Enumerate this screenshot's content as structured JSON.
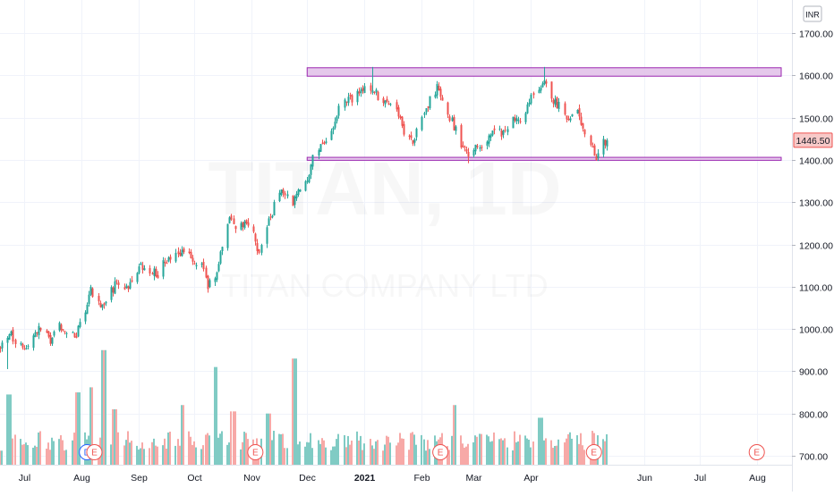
{
  "currency_label": "INR",
  "watermark": {
    "symbol": "TITAN, 1D",
    "subtitle": "TITAN COMPANY LTD"
  },
  "colors": {
    "up": "#26a69a",
    "down": "#ef5350",
    "up_volume": "#80cbc4",
    "down_volume": "#f7a9a7",
    "grid": "#f0f3fa",
    "axis_text": "#131722",
    "zone_stroke": "#9c27b0",
    "zone_fill": "#e1bee7",
    "last_price_bg": "#f7c9c8",
    "last_price_border": "#ef5350"
  },
  "chart_data": {
    "type": "candlestick",
    "ylim": [
      680,
      1740
    ],
    "yticks": [
      "1700.00",
      "1600.00",
      "1500.00",
      "1400.00",
      "1300.00",
      "1200.00",
      "1100.00",
      "1000.00",
      "900.00",
      "800.00",
      "700.00"
    ],
    "ytick_values": [
      1700,
      1600,
      1500,
      1400,
      1300,
      1200,
      1100,
      1000,
      900,
      800,
      700
    ],
    "xlim": [
      "2020-06-18",
      "2021-08-20"
    ],
    "xticks": [
      "Jul",
      "Aug",
      "Sep",
      "Oct",
      "Nov",
      "Dec",
      "2021",
      "Feb",
      "Mar",
      "Apr",
      "Jun",
      "Jul",
      "Aug"
    ],
    "xtick_dates": [
      "2020-07-01",
      "2020-08-01",
      "2020-09-01",
      "2020-10-01",
      "2020-11-01",
      "2020-12-01",
      "2021-01-01",
      "2021-02-01",
      "2021-03-01",
      "2021-04-01",
      "2021-06-01",
      "2021-07-01",
      "2021-08-01"
    ],
    "last_price": "1446.50",
    "last_price_value": 1446.5,
    "resistance_zone": {
      "from": "2020-12-01",
      "to": "2021-08-20",
      "low": 1598,
      "high": 1618
    },
    "support_zone": {
      "from": "2020-12-01",
      "to": "2021-08-20",
      "low": 1399,
      "high": 1406
    },
    "close_path": [
      [
        "2020-06-18",
        960
      ],
      [
        "2020-06-24",
        985
      ],
      [
        "2020-06-30",
        950
      ],
      [
        "2020-07-06",
        990
      ],
      [
        "2020-07-10",
        1000
      ],
      [
        "2020-07-15",
        970
      ],
      [
        "2020-07-20",
        1010
      ],
      [
        "2020-07-24",
        990
      ],
      [
        "2020-07-28",
        980
      ],
      [
        "2020-08-03",
        1040
      ],
      [
        "2020-08-06",
        1090
      ],
      [
        "2020-08-10",
        1060
      ],
      [
        "2020-08-14",
        1070
      ],
      [
        "2020-08-20",
        1110
      ],
      [
        "2020-08-26",
        1100
      ],
      [
        "2020-09-01",
        1150
      ],
      [
        "2020-09-07",
        1140
      ],
      [
        "2020-09-11",
        1130
      ],
      [
        "2020-09-15",
        1160
      ],
      [
        "2020-09-18",
        1170
      ],
      [
        "2020-09-23",
        1180
      ],
      [
        "2020-09-28",
        1170
      ],
      [
        "2020-10-05",
        1150
      ],
      [
        "2020-10-08",
        1100
      ],
      [
        "2020-10-12",
        1120
      ],
      [
        "2020-10-16",
        1190
      ],
      [
        "2020-10-20",
        1260
      ],
      [
        "2020-10-23",
        1230
      ],
      [
        "2020-10-28",
        1250
      ],
      [
        "2020-11-02",
        1220
      ],
      [
        "2020-11-05",
        1180
      ],
      [
        "2020-11-09",
        1240
      ],
      [
        "2020-11-13",
        1290
      ],
      [
        "2020-11-18",
        1330
      ],
      [
        "2020-11-23",
        1300
      ],
      [
        "2020-11-27",
        1340
      ],
      [
        "2020-12-02",
        1360
      ],
      [
        "2020-12-04",
        1420
      ],
      [
        "2020-12-09",
        1440
      ],
      [
        "2020-12-14",
        1470
      ],
      [
        "2020-12-18",
        1520
      ],
      [
        "2020-12-23",
        1540
      ],
      [
        "2020-12-29",
        1560
      ],
      [
        "2021-01-04",
        1570
      ],
      [
        "2021-01-08",
        1550
      ],
      [
        "2021-01-13",
        1530
      ],
      [
        "2021-01-18",
        1510
      ],
      [
        "2021-01-22",
        1470
      ],
      [
        "2021-01-27",
        1440
      ],
      [
        "2021-02-01",
        1500
      ],
      [
        "2021-02-05",
        1540
      ],
      [
        "2021-02-09",
        1570
      ],
      [
        "2021-02-12",
        1550
      ],
      [
        "2021-02-17",
        1490
      ],
      [
        "2021-02-22",
        1440
      ],
      [
        "2021-02-26",
        1410
      ],
      [
        "2021-03-03",
        1430
      ],
      [
        "2021-03-08",
        1450
      ],
      [
        "2021-03-12",
        1470
      ],
      [
        "2021-03-17",
        1460
      ],
      [
        "2021-03-22",
        1500
      ],
      [
        "2021-03-26",
        1480
      ],
      [
        "2021-03-31",
        1540
      ],
      [
        "2021-04-05",
        1560
      ],
      [
        "2021-04-08",
        1590
      ],
      [
        "2021-04-12",
        1540
      ],
      [
        "2021-04-16",
        1530
      ],
      [
        "2021-04-21",
        1500
      ],
      [
        "2021-04-26",
        1510
      ],
      [
        "2021-04-29",
        1470
      ],
      [
        "2021-05-03",
        1430
      ],
      [
        "2021-05-06",
        1410
      ],
      [
        "2021-05-10",
        1440
      ],
      [
        "2021-05-12",
        1446.5
      ]
    ],
    "volume_peaks": [
      [
        "2020-06-23",
        845
      ],
      [
        "2020-07-30",
        850
      ],
      [
        "2020-08-07",
        862
      ],
      [
        "2020-08-13",
        950
      ],
      [
        "2020-08-19",
        810
      ],
      [
        "2020-09-25",
        820
      ],
      [
        "2020-10-12",
        910
      ],
      [
        "2020-10-22",
        805
      ],
      [
        "2020-11-10",
        800
      ],
      [
        "2020-11-24",
        930
      ],
      [
        "2021-02-19",
        820
      ],
      [
        "2021-04-06",
        790
      ]
    ],
    "event_markers": [
      {
        "date": "2020-08-04",
        "label": "D",
        "color": "#2962ff"
      },
      {
        "date": "2020-08-08",
        "label": "E",
        "color": "#ef5350"
      },
      {
        "date": "2020-11-03",
        "label": "E",
        "color": "#ef5350"
      },
      {
        "date": "2021-02-11",
        "label": "E",
        "color": "#ef5350"
      },
      {
        "date": "2021-05-05",
        "label": "E",
        "color": "#ef5350"
      },
      {
        "date": "2021-08-01",
        "label": "E",
        "color": "#ef5350"
      }
    ]
  }
}
